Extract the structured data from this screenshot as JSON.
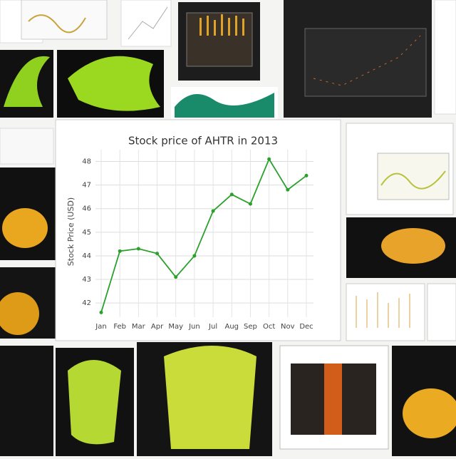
{
  "chart_data": {
    "type": "line",
    "title": "Stock price of AHTR in 2013",
    "y_label": "Stock Price (USD)",
    "categories": [
      "Jan",
      "Feb",
      "Mar",
      "Apr",
      "May",
      "Jun",
      "Jul",
      "Aug",
      "Sep",
      "Oct",
      "Nov",
      "Dec"
    ],
    "series": [
      {
        "name": "AHTR",
        "color": "#2ca02c",
        "values": [
          41.6,
          44.2,
          44.3,
          44.1,
          43.1,
          44.0,
          45.9,
          46.6,
          46.2,
          48.1,
          46.8,
          47.4
        ]
      }
    ],
    "ylim": [
      41.4,
      48.5
    ],
    "yticks": [
      42,
      43,
      44,
      45,
      46,
      47,
      48
    ],
    "grid": true
  }
}
